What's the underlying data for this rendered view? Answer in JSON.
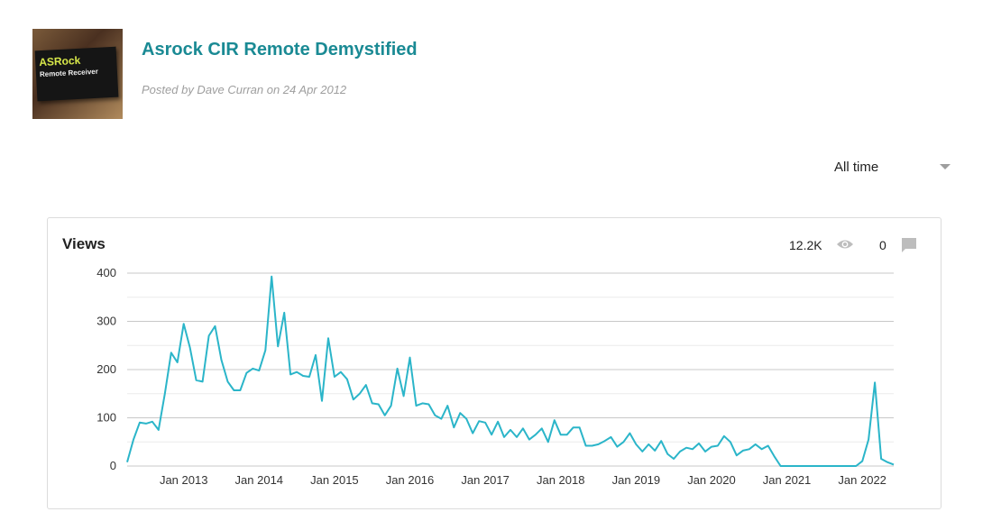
{
  "post": {
    "title": "Asrock CIR Remote Demystified",
    "meta": "Posted by Dave Curran on 24 Apr 2012",
    "thumbnail_text": [
      "ASRock",
      "Remote Receiver"
    ]
  },
  "range_select": {
    "value": "All time"
  },
  "stats": {
    "views": "12.2K",
    "comments": "0"
  },
  "icons": {
    "views": "eye-icon",
    "comments": "comment-icon"
  },
  "colors": {
    "title": "#1a8a94",
    "line": "#2bb5c9"
  },
  "chart_data": {
    "type": "line",
    "title": "Views",
    "xlabel": "",
    "ylabel": "",
    "ylim": [
      0,
      400
    ],
    "yticks": [
      0,
      100,
      200,
      300,
      400
    ],
    "grid": true,
    "xlim": [
      "2012-04",
      "2022-06"
    ],
    "xticks": [
      {
        "date": "2013-01",
        "label": "Jan 2013"
      },
      {
        "date": "2014-01",
        "label": "Jan 2014"
      },
      {
        "date": "2015-01",
        "label": "Jan 2015"
      },
      {
        "date": "2016-01",
        "label": "Jan 2016"
      },
      {
        "date": "2017-01",
        "label": "Jan 2017"
      },
      {
        "date": "2018-01",
        "label": "Jan 2018"
      },
      {
        "date": "2019-01",
        "label": "Jan 2019"
      },
      {
        "date": "2020-01",
        "label": "Jan 2020"
      },
      {
        "date": "2021-01",
        "label": "Jan 2021"
      },
      {
        "date": "2022-01",
        "label": "Jan 2022"
      }
    ],
    "series": [
      {
        "x": [
          "2012-04",
          "2012-05",
          "2012-06",
          "2012-07",
          "2012-08",
          "2012-09",
          "2012-10",
          "2012-11",
          "2012-12",
          "2013-01",
          "2013-02",
          "2013-03",
          "2013-04",
          "2013-05",
          "2013-06",
          "2013-07",
          "2013-08",
          "2013-09",
          "2013-10",
          "2013-11",
          "2013-12",
          "2014-01",
          "2014-02",
          "2014-03",
          "2014-04",
          "2014-05",
          "2014-06",
          "2014-07",
          "2014-08",
          "2014-09",
          "2014-10",
          "2014-11",
          "2014-12",
          "2015-01",
          "2015-02",
          "2015-03",
          "2015-04",
          "2015-05",
          "2015-06",
          "2015-07",
          "2015-08",
          "2015-09",
          "2015-10",
          "2015-11",
          "2015-12",
          "2016-01",
          "2016-02",
          "2016-03",
          "2016-04",
          "2016-05",
          "2016-06",
          "2016-07",
          "2016-08",
          "2016-09",
          "2016-10",
          "2016-11",
          "2016-12",
          "2017-01",
          "2017-02",
          "2017-03",
          "2017-04",
          "2017-05",
          "2017-06",
          "2017-07",
          "2017-08",
          "2017-09",
          "2017-10",
          "2017-11",
          "2017-12",
          "2018-01",
          "2018-02",
          "2018-03",
          "2018-04",
          "2018-05",
          "2018-06",
          "2018-07",
          "2018-08",
          "2018-09",
          "2018-10",
          "2018-11",
          "2018-12",
          "2019-01",
          "2019-02",
          "2019-03",
          "2019-04",
          "2019-05",
          "2019-06",
          "2019-07",
          "2019-08",
          "2019-09",
          "2019-10",
          "2019-11",
          "2019-12",
          "2020-01",
          "2020-02",
          "2020-03",
          "2020-04",
          "2020-05",
          "2020-06",
          "2020-07",
          "2020-08",
          "2020-09",
          "2020-10",
          "2020-11",
          "2020-12",
          "2021-01",
          "2021-02",
          "2021-03",
          "2021-04",
          "2021-05",
          "2021-06",
          "2021-07",
          "2021-08",
          "2021-09",
          "2021-10",
          "2021-11",
          "2021-12",
          "2022-01",
          "2022-02",
          "2022-03",
          "2022-04",
          "2022-05",
          "2022-06"
        ],
        "y": [
          8,
          55,
          90,
          88,
          92,
          75,
          150,
          235,
          215,
          295,
          245,
          178,
          175,
          270,
          290,
          220,
          175,
          157,
          157,
          193,
          202,
          198,
          240,
          393,
          248,
          318,
          190,
          195,
          187,
          185,
          230,
          135,
          265,
          185,
          195,
          180,
          138,
          150,
          168,
          130,
          128,
          105,
          125,
          202,
          145,
          225,
          125,
          130,
          128,
          105,
          98,
          125,
          80,
          110,
          98,
          68,
          93,
          90,
          65,
          92,
          60,
          75,
          60,
          78,
          55,
          65,
          78,
          50,
          95,
          65,
          65,
          80,
          80,
          42,
          42,
          45,
          52,
          60,
          40,
          50,
          68,
          45,
          30,
          45,
          32,
          52,
          25,
          15,
          30,
          38,
          35,
          47,
          30,
          40,
          42,
          62,
          50,
          22,
          32,
          35,
          45,
          35,
          42,
          20,
          0,
          0,
          0,
          0,
          0,
          0,
          0,
          0,
          0,
          0,
          0,
          0,
          0,
          10,
          55,
          173,
          15,
          8,
          3
        ]
      }
    ]
  }
}
